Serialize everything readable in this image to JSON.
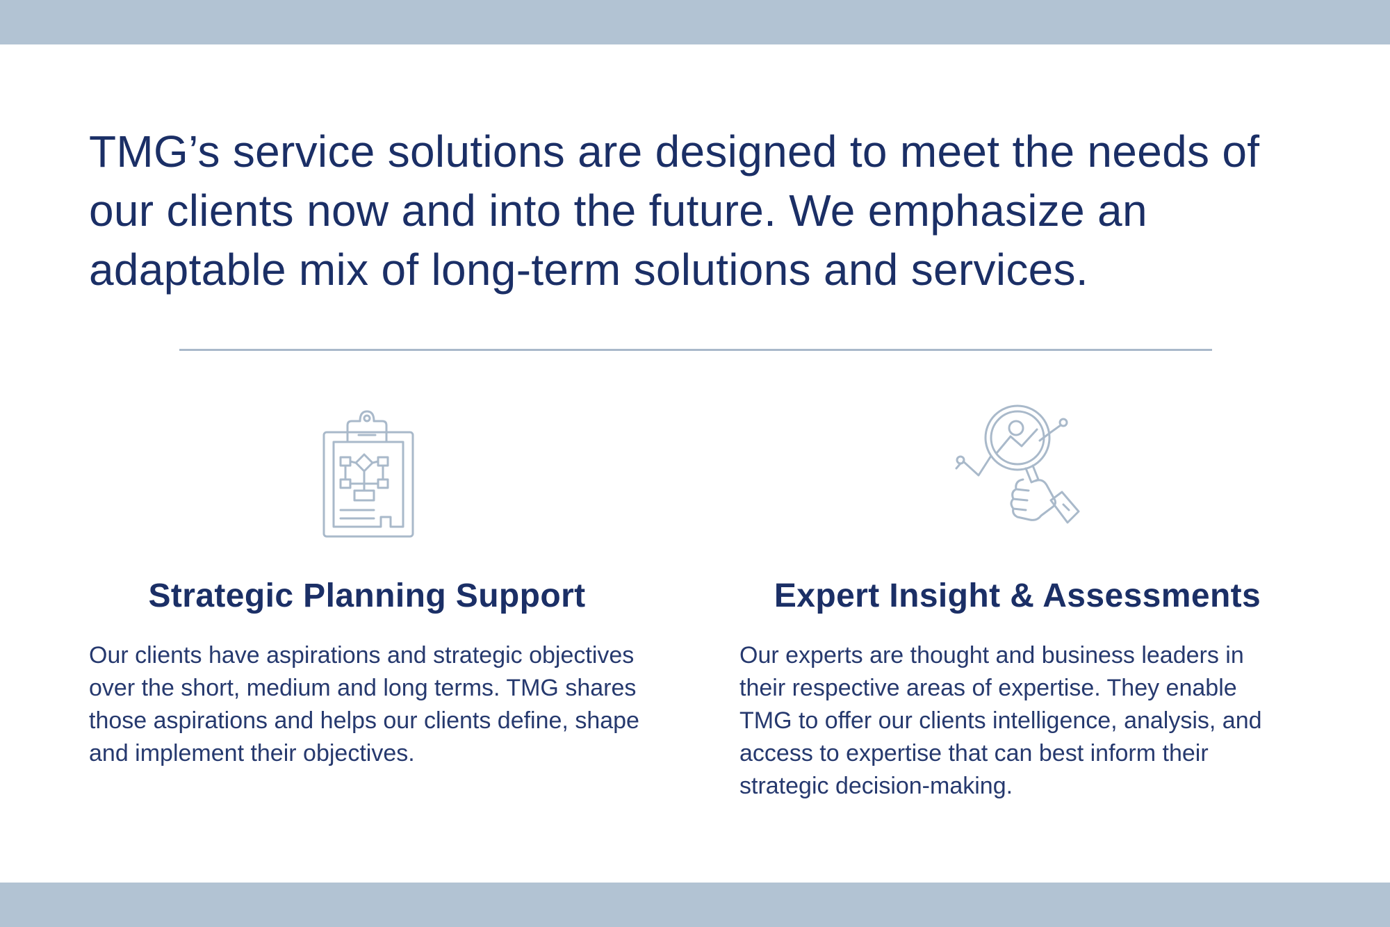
{
  "intro": {
    "text": "TMG’s service solutions are designed to meet the needs of our clients now and into the future. We emphasize an adaptable mix of long-term solutions and services."
  },
  "services": [
    {
      "icon": "clipboard-flowchart-icon",
      "title": "Strategic Planning Support",
      "body": "Our clients have aspirations and strategic objectives over the short, medium and long terms. TMG shares those aspirations and helps our clients define, shape and implement their objectives."
    },
    {
      "icon": "magnifier-chart-icon",
      "title": "Expert Insight & Assessments",
      "body": "Our experts are thought and business leaders in their respective areas of expertise. They enable TMG to offer our clients intelligence, analysis, and access to expertise that can best inform their strategic decision-making."
    }
  ],
  "colors": {
    "text": "#1b2f66",
    "band": "#b2c3d3",
    "icon": "#a9b9ca"
  }
}
